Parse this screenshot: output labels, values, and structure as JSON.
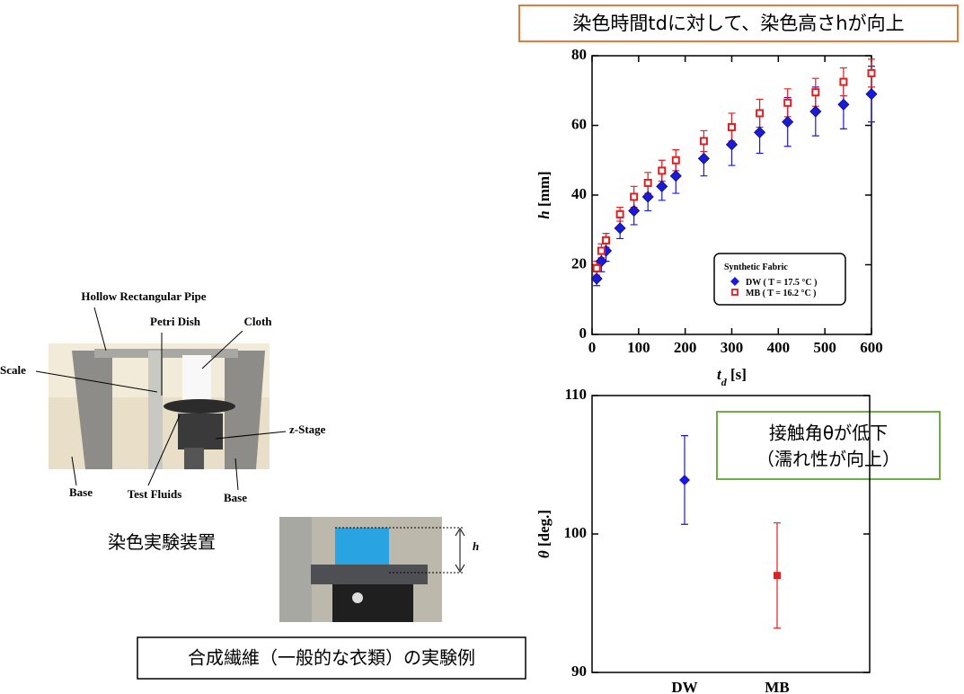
{
  "chart_data": [
    {
      "type": "scatter",
      "xlabel": [
        "t",
        "d",
        " [s]"
      ],
      "ylabel": [
        "h",
        " [mm]"
      ],
      "xlim": [
        0,
        600
      ],
      "xticks": [
        0,
        100,
        200,
        300,
        400,
        500,
        600
      ],
      "ylim": [
        0,
        80
      ],
      "yticks": [
        0,
        20,
        40,
        60,
        80
      ],
      "x": [
        10,
        20,
        30,
        60,
        90,
        120,
        150,
        180,
        240,
        300,
        360,
        420,
        480,
        540,
        600
      ],
      "legend_title": "Synthetic Fabric",
      "series": [
        {
          "name": "DW ( T = 17.5 °C )",
          "color": "#1a1adc",
          "marker": "diamond",
          "values": [
            16,
            21,
            24,
            30.5,
            35.5,
            39.5,
            42.5,
            45.5,
            50.5,
            54.5,
            58,
            61,
            64,
            66,
            69
          ],
          "errors": [
            2,
            3,
            3,
            3,
            4,
            4,
            4,
            5,
            5,
            6,
            6,
            7,
            7,
            7,
            8
          ]
        },
        {
          "name": "MB ( T = 16.2 °C )",
          "color": "#e02020",
          "marker": "square",
          "values": [
            19,
            24,
            27,
            34.5,
            39.5,
            43.5,
            47,
            50,
            55.5,
            59.5,
            63.5,
            66.5,
            69.5,
            72.5,
            75
          ],
          "errors": [
            2,
            2,
            2,
            2,
            3,
            3,
            3,
            3,
            3,
            4,
            4,
            4,
            4,
            4,
            4
          ]
        }
      ]
    },
    {
      "type": "errorbar",
      "ylabel": [
        "θ",
        " [deg.]"
      ],
      "categories": [
        "DW",
        "MB"
      ],
      "ylim": [
        90,
        110
      ],
      "yticks": [
        90,
        100,
        110
      ],
      "values": [
        103.9,
        97.0
      ],
      "errors": [
        3.2,
        3.8
      ],
      "colors": [
        "#1a1adc",
        "#e02020"
      ]
    }
  ],
  "annotations": {
    "top": "染色時間tdに対して、染色高さhが向上",
    "contact": [
      "接触角θが低下",
      "（濡れ性が向上）"
    ]
  },
  "figure": {
    "labels": {
      "pipe": "Hollow Rectangular Pipe",
      "dish": "Petri Dish",
      "cloth": "Cloth",
      "scale": "Scale",
      "stage": "z-Stage",
      "base_left": "Base",
      "fluids": "Test Fluids",
      "base_right": "Base",
      "h": "h"
    },
    "caption_apparatus": "染色実験装置",
    "caption_example": "合成繊維（一般的な衣類）の実験例"
  }
}
